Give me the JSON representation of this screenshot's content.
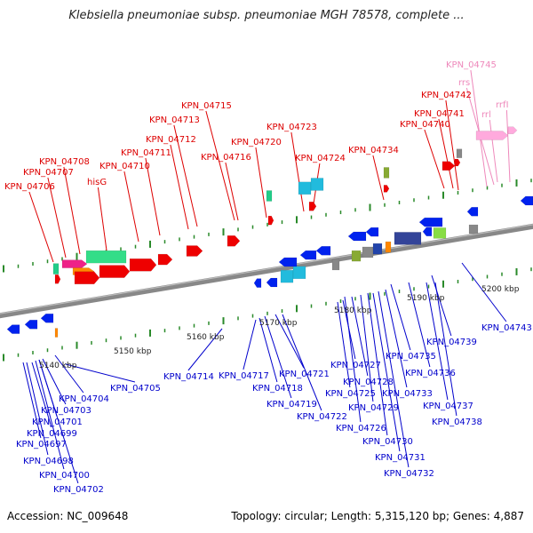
{
  "header": {
    "title": "Klebsiella pneumoniae subsp. pneumoniae MGH 78578, complete ..."
  },
  "footer": {
    "accession": "Accession: NC_009648",
    "summary": "Topology: circular; Length: 5,315,120 bp; Genes: 4,887"
  },
  "colors": {
    "forward_label": "#dd0000",
    "reverse_label": "#0000cc",
    "rna_label": "#ee88bb",
    "backbone": "#888888"
  },
  "scale_labels": [
    "5140 kbp",
    "5150 kbp",
    "5160 kbp",
    "5170 kbp",
    "5180 kbp",
    "5190 kbp",
    "5200 kbp"
  ],
  "forward_labels": [
    "KPN_04706",
    "KPN_04707",
    "KPN_04708",
    "hisG",
    "KPN_04710",
    "KPN_04711",
    "KPN_04712",
    "KPN_04713",
    "KPN_04715",
    "KPN_04716",
    "KPN_04720",
    "KPN_04723",
    "KPN_04724",
    "KPN_04734",
    "KPN_04740",
    "KPN_04741",
    "KPN_04742"
  ],
  "rna_labels": [
    "KPN_04745",
    "rrs",
    "rrl",
    "rrfI"
  ],
  "reverse_labels": [
    "KPN_04697",
    "KPN_04698",
    "KPN_04699",
    "KPN_04700",
    "KPN_04701",
    "KPN_04702",
    "KPN_04703",
    "KPN_04704",
    "KPN_04705",
    "KPN_04714",
    "KPN_04717",
    "KPN_04718",
    "KPN_04719",
    "KPN_04721",
    "KPN_04722",
    "KPN_04725",
    "KPN_04726",
    "KPN_04727",
    "KPN_04728",
    "KPN_04729",
    "KPN_04730",
    "KPN_04731",
    "KPN_04732",
    "KPN_04733",
    "KPN_04735",
    "KPN_04736",
    "KPN_04737",
    "KPN_04738",
    "KPN_04739",
    "KPN_04743"
  ],
  "icons": {
    "feature_shape": "gene-arrow"
  }
}
